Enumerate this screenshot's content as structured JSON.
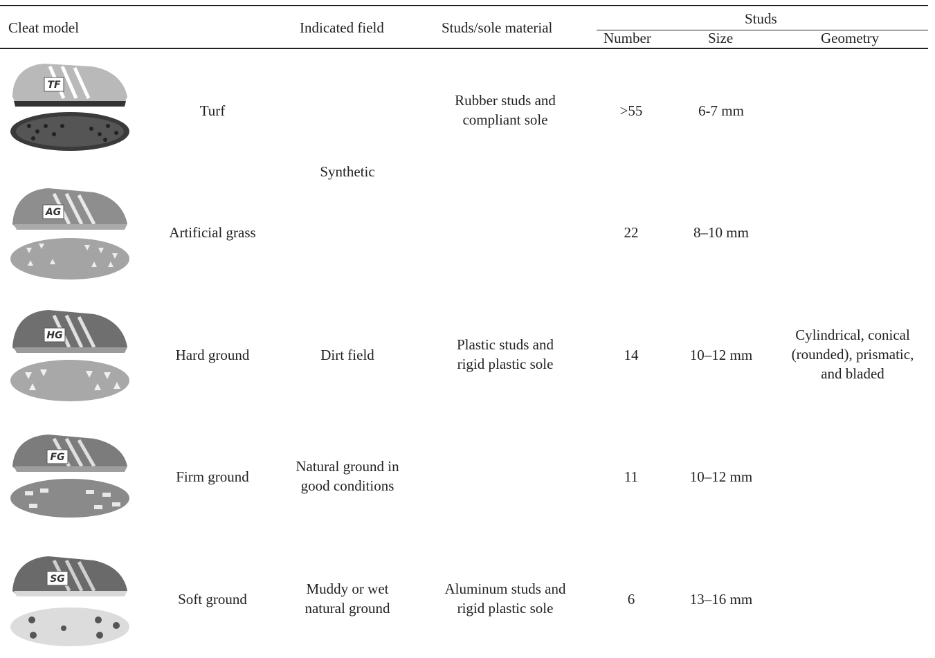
{
  "table": {
    "headers": {
      "cleat_model": "Cleat model",
      "indicated_field": "Indicated field",
      "material": "Studs/sole material",
      "studs": "Studs",
      "number": "Number",
      "size": "Size",
      "geometry": "Geometry"
    },
    "rows": [
      {
        "tag": "TF",
        "model": "Turf",
        "number": ">55",
        "size": "6-7 mm"
      },
      {
        "tag": "AG",
        "model": "Artificial grass",
        "number": "22",
        "size": "8–10 mm"
      },
      {
        "tag": "HG",
        "model": "Hard ground",
        "number": "14",
        "size": "10–12 mm"
      },
      {
        "tag": "FG",
        "model": "Firm ground",
        "number": "11",
        "size": "10–12 mm"
      },
      {
        "tag": "SG",
        "model": "Soft ground",
        "number": "6",
        "size": "13–16 mm"
      }
    ],
    "fields": {
      "synthetic": "Synthetic",
      "dirt": "Dirt field",
      "natural_good": [
        "Natural ground in",
        "good conditions"
      ],
      "muddy": [
        "Muddy or wet",
        "natural ground"
      ]
    },
    "materials": {
      "rubber": [
        "Rubber studs and",
        "compliant sole"
      ],
      "plastic": [
        "Plastic studs and",
        "rigid plastic sole"
      ],
      "aluminum": [
        "Aluminum studs and",
        "rigid plastic sole"
      ]
    },
    "geometry": [
      "Cylindrical, conical",
      "(rounded), prismatic,",
      "and bladed"
    ]
  }
}
